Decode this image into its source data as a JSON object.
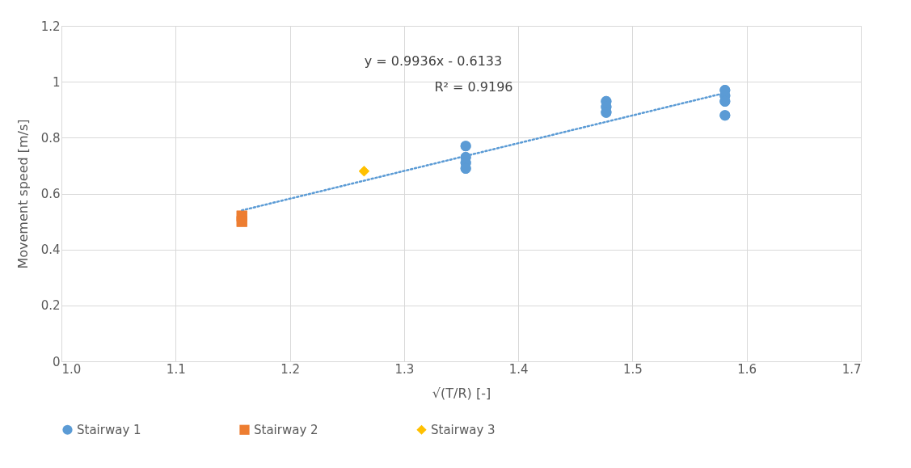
{
  "chart_data": {
    "type": "scatter",
    "xlabel": "√(T/R) [-]",
    "ylabel": "Movement  speed [m/s]",
    "xlim": [
      1.0,
      1.7
    ],
    "xticks": [
      {
        "value": 1.0,
        "label": "1.0"
      },
      {
        "value": 1.1,
        "label": "1.1"
      },
      {
        "value": 1.2,
        "label": "1.2"
      },
      {
        "value": 1.3,
        "label": "1.3"
      },
      {
        "value": 1.4,
        "label": "1.4"
      },
      {
        "value": 1.5,
        "label": "1.5"
      },
      {
        "value": 1.6,
        "label": "1.6"
      },
      {
        "value": 1.7,
        "label": "1.7"
      }
    ],
    "ylim": [
      0,
      1.2
    ],
    "yticks": [
      0,
      0.2,
      0.4,
      0.6,
      0.8,
      1,
      1.2
    ],
    "grid": true,
    "legend": "bottom",
    "annotations": [
      "y = 0.9936x - 0.6133",
      "R² = 0.9196"
    ],
    "series": [
      {
        "name": "Stairway 1",
        "color": "#5b9bd5",
        "marker": "circle",
        "x": [
          1.354,
          1.354,
          1.354,
          1.354,
          1.477,
          1.477,
          1.477,
          1.581,
          1.581,
          1.581,
          1.581
        ],
        "values": [
          0.77,
          0.73,
          0.71,
          0.69,
          0.93,
          0.91,
          0.89,
          0.97,
          0.95,
          0.93,
          0.88
        ]
      },
      {
        "name": "Stairway 2",
        "color": "#ed7d31",
        "marker": "square",
        "x": [
          1.158,
          1.158
        ],
        "values": [
          0.52,
          0.5
        ]
      },
      {
        "name": "Stairway 3",
        "color": "#ffc000",
        "marker": "diamond",
        "x": [
          1.265
        ],
        "values": [
          0.68
        ]
      },
      {
        "type": "line",
        "color": "#5b9bd5",
        "marker": "none",
        "line_style": "dotted",
        "x": [
          1.158,
          1.581
        ],
        "values": [
          0.54,
          0.96
        ]
      }
    ]
  }
}
